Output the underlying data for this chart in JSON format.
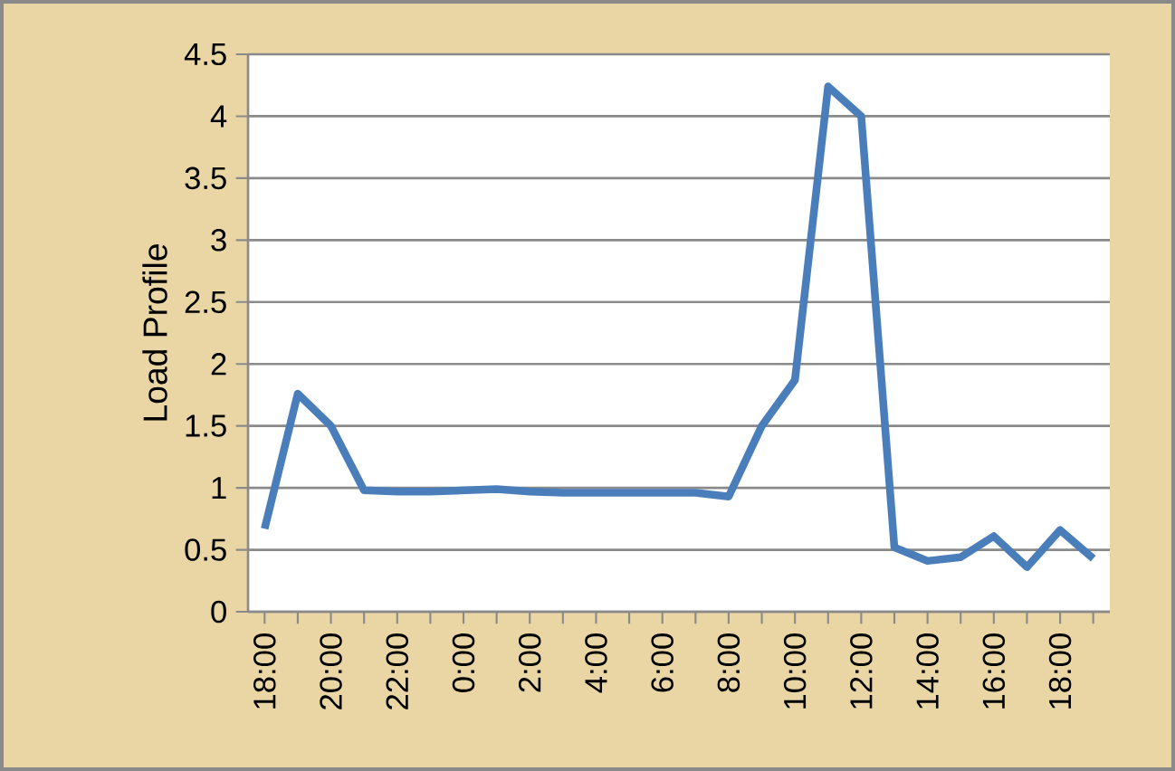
{
  "chart_data": {
    "type": "line",
    "ylabel": "Load Profile",
    "categories": [
      "18:00",
      null,
      "20:00",
      null,
      "22:00",
      null,
      "0:00",
      null,
      "2:00",
      null,
      "4:00",
      null,
      "6:00",
      null,
      "8:00",
      null,
      "10:00",
      null,
      "12:00",
      null,
      "14:00",
      null,
      "16:00",
      null,
      "18:00",
      null
    ],
    "series": [
      {
        "color": "#4a7ebb",
        "values": [
          0.67,
          1.76,
          1.5,
          0.98,
          0.97,
          0.97,
          0.98,
          0.99,
          0.97,
          0.96,
          0.96,
          0.96,
          0.96,
          0.96,
          0.93,
          1.5,
          1.87,
          4.24,
          4.0,
          0.52,
          0.41,
          0.44,
          0.61,
          0.36,
          0.66,
          0.43
        ]
      }
    ],
    "ylim": [
      0,
      4.5
    ],
    "yticks": [
      0,
      0.5,
      1,
      1.5,
      2,
      2.5,
      3,
      3.5,
      4,
      4.5
    ],
    "grid": "y",
    "marker": "none",
    "line_style": "solid"
  }
}
